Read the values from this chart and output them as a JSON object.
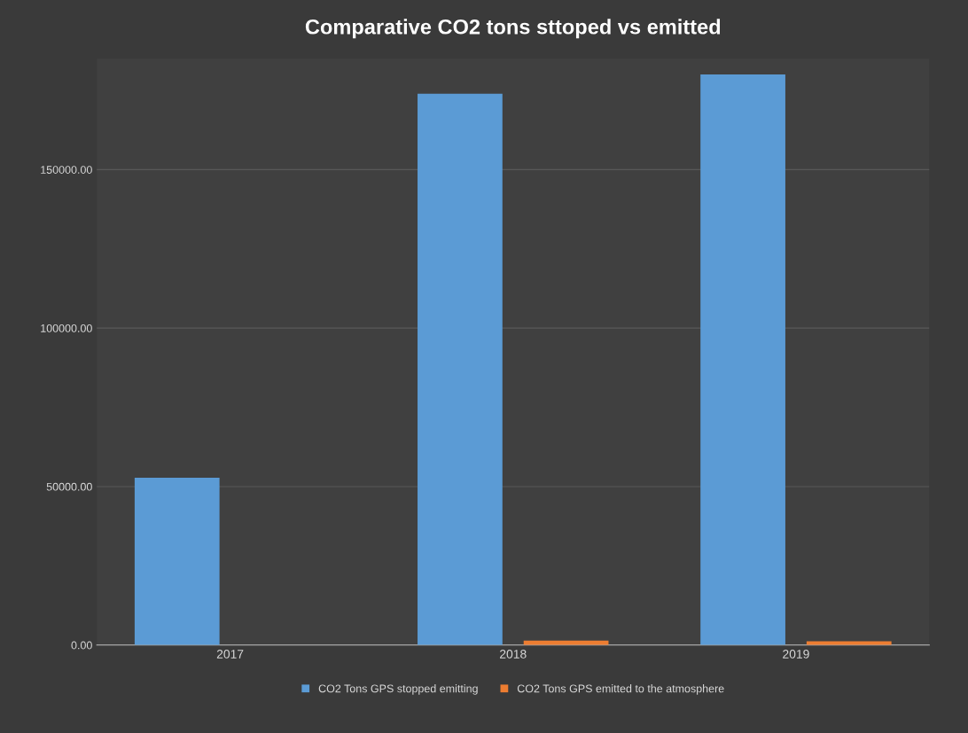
{
  "chart_data": {
    "type": "bar",
    "title": "Comparative CO2 tons sttoped vs emitted",
    "categories": [
      "2017",
      "2018",
      "2019"
    ],
    "series": [
      {
        "name": "CO2 Tons GPS stopped emitting",
        "color": "#5b9bd5",
        "values": [
          52800,
          173900,
          180000
        ]
      },
      {
        "name": "CO2 Tons GPS emitted to the atmosphere",
        "color": "#ed7d31",
        "values": [
          0,
          1400,
          1200
        ]
      }
    ],
    "ylim": [
      0,
      185000
    ],
    "yticks": [
      {
        "value": 0,
        "label": "0.00"
      },
      {
        "value": 50000,
        "label": "50000.00"
      },
      {
        "value": 100000,
        "label": "100000.00"
      },
      {
        "value": 150000,
        "label": "150000.00"
      }
    ],
    "grid": "y",
    "legend": "bottom"
  }
}
